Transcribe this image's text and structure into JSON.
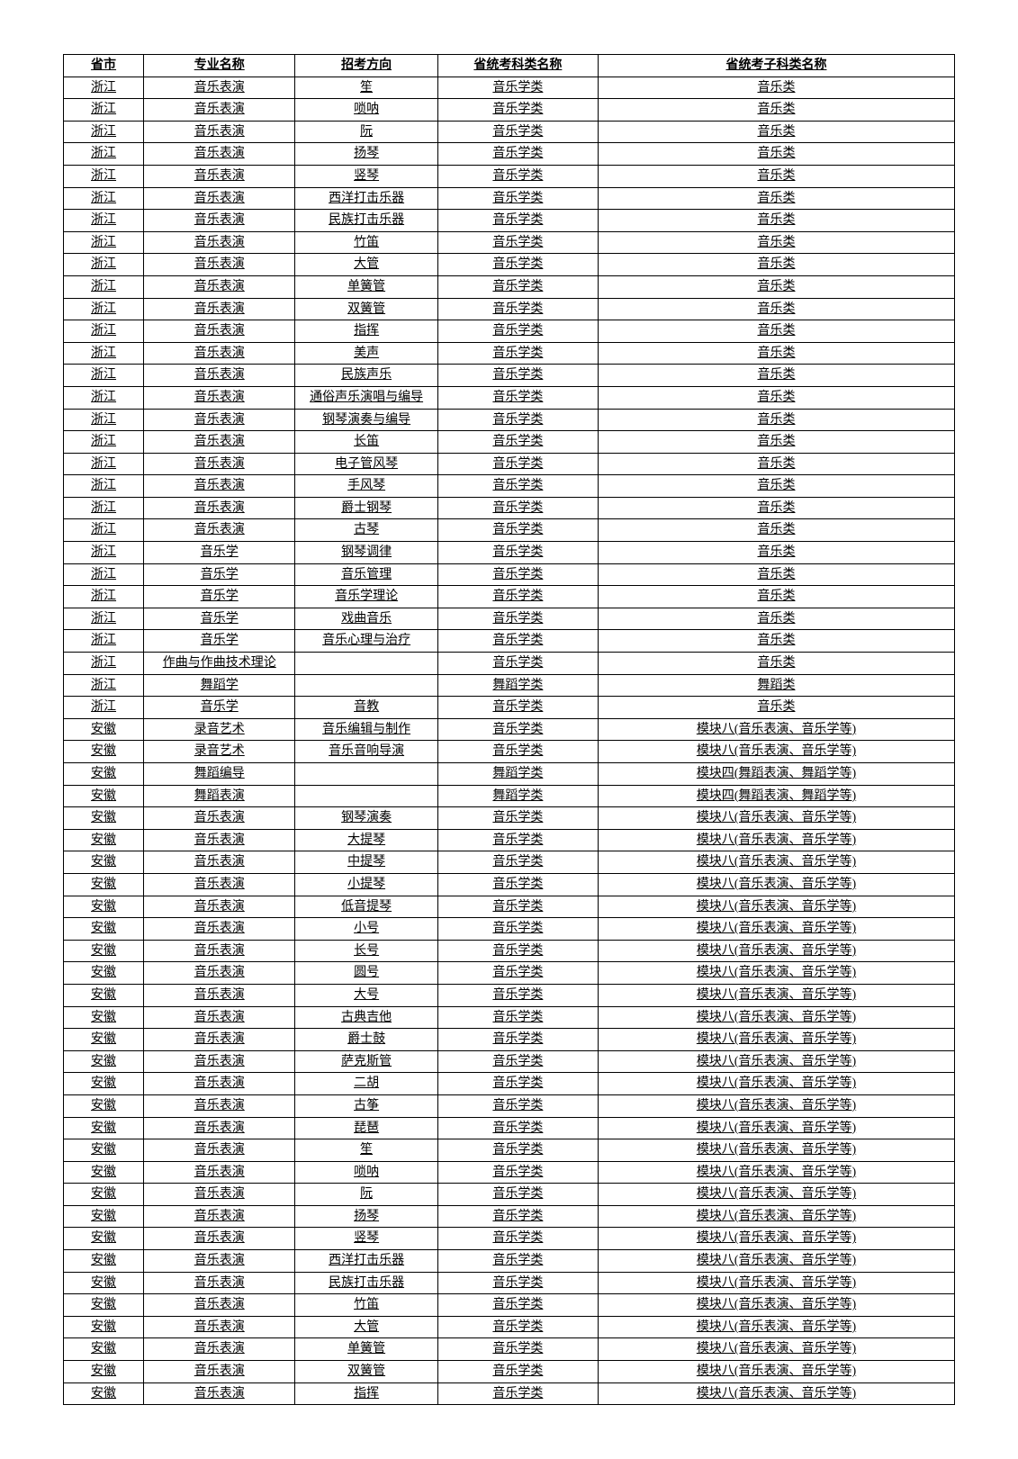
{
  "table": {
    "columns": [
      "省市",
      "专业名称",
      "招考方向",
      "省统考科类名称",
      "省统考子科类名称"
    ],
    "column_widths": [
      "9%",
      "17%",
      "16%",
      "18%",
      "40%"
    ],
    "text_color": "#000000",
    "border_color": "#000000",
    "background_color": "#ffffff",
    "font_size": 14,
    "rows": [
      [
        "浙江",
        "音乐表演",
        "笙",
        "音乐学类",
        "音乐类"
      ],
      [
        "浙江",
        "音乐表演",
        "唢呐",
        "音乐学类",
        "音乐类"
      ],
      [
        "浙江",
        "音乐表演",
        "阮",
        "音乐学类",
        "音乐类"
      ],
      [
        "浙江",
        "音乐表演",
        "扬琴",
        "音乐学类",
        "音乐类"
      ],
      [
        "浙江",
        "音乐表演",
        "竖琴",
        "音乐学类",
        "音乐类"
      ],
      [
        "浙江",
        "音乐表演",
        "西洋打击乐器",
        "音乐学类",
        "音乐类"
      ],
      [
        "浙江",
        "音乐表演",
        "民族打击乐器",
        "音乐学类",
        "音乐类"
      ],
      [
        "浙江",
        "音乐表演",
        "竹笛",
        "音乐学类",
        "音乐类"
      ],
      [
        "浙江",
        "音乐表演",
        "大管",
        "音乐学类",
        "音乐类"
      ],
      [
        "浙江",
        "音乐表演",
        "单簧管",
        "音乐学类",
        "音乐类"
      ],
      [
        "浙江",
        "音乐表演",
        "双簧管",
        "音乐学类",
        "音乐类"
      ],
      [
        "浙江",
        "音乐表演",
        "指挥",
        "音乐学类",
        "音乐类"
      ],
      [
        "浙江",
        "音乐表演",
        "美声",
        "音乐学类",
        "音乐类"
      ],
      [
        "浙江",
        "音乐表演",
        "民族声乐",
        "音乐学类",
        "音乐类"
      ],
      [
        "浙江",
        "音乐表演",
        "通俗声乐演唱与编导",
        "音乐学类",
        "音乐类"
      ],
      [
        "浙江",
        "音乐表演",
        "钢琴演奏与编导",
        "音乐学类",
        "音乐类"
      ],
      [
        "浙江",
        "音乐表演",
        "长笛",
        "音乐学类",
        "音乐类"
      ],
      [
        "浙江",
        "音乐表演",
        "电子管风琴",
        "音乐学类",
        "音乐类"
      ],
      [
        "浙江",
        "音乐表演",
        "手风琴",
        "音乐学类",
        "音乐类"
      ],
      [
        "浙江",
        "音乐表演",
        "爵士钢琴",
        "音乐学类",
        "音乐类"
      ],
      [
        "浙江",
        "音乐表演",
        "古琴",
        "音乐学类",
        "音乐类"
      ],
      [
        "浙江",
        "音乐学",
        "钢琴调律",
        "音乐学类",
        "音乐类"
      ],
      [
        "浙江",
        "音乐学",
        "音乐管理",
        "音乐学类",
        "音乐类"
      ],
      [
        "浙江",
        "音乐学",
        "音乐学理论",
        "音乐学类",
        "音乐类"
      ],
      [
        "浙江",
        "音乐学",
        "戏曲音乐",
        "音乐学类",
        "音乐类"
      ],
      [
        "浙江",
        "音乐学",
        "音乐心理与治疗",
        "音乐学类",
        "音乐类"
      ],
      [
        "浙江",
        "作曲与作曲技术理论",
        "",
        "音乐学类",
        "音乐类"
      ],
      [
        "浙江",
        "舞蹈学",
        "",
        "舞蹈学类",
        "舞蹈类"
      ],
      [
        "浙江",
        "音乐学",
        "音教",
        "音乐学类",
        "音乐类"
      ],
      [
        "安徽",
        "录音艺术",
        "音乐编辑与制作",
        "音乐学类",
        "模块八(音乐表演、音乐学等)"
      ],
      [
        "安徽",
        "录音艺术",
        "音乐音响导演",
        "音乐学类",
        "模块八(音乐表演、音乐学等)"
      ],
      [
        "安徽",
        "舞蹈编导",
        "",
        "舞蹈学类",
        "模块四(舞蹈表演、舞蹈学等)"
      ],
      [
        "安徽",
        "舞蹈表演",
        "",
        "舞蹈学类",
        "模块四(舞蹈表演、舞蹈学等)"
      ],
      [
        "安徽",
        "音乐表演",
        "钢琴演奏",
        "音乐学类",
        "模块八(音乐表演、音乐学等)"
      ],
      [
        "安徽",
        "音乐表演",
        "大提琴",
        "音乐学类",
        "模块八(音乐表演、音乐学等)"
      ],
      [
        "安徽",
        "音乐表演",
        "中提琴",
        "音乐学类",
        "模块八(音乐表演、音乐学等)"
      ],
      [
        "安徽",
        "音乐表演",
        "小提琴",
        "音乐学类",
        "模块八(音乐表演、音乐学等)"
      ],
      [
        "安徽",
        "音乐表演",
        "低音提琴",
        "音乐学类",
        "模块八(音乐表演、音乐学等)"
      ],
      [
        "安徽",
        "音乐表演",
        "小号",
        "音乐学类",
        "模块八(音乐表演、音乐学等)"
      ],
      [
        "安徽",
        "音乐表演",
        "长号",
        "音乐学类",
        "模块八(音乐表演、音乐学等)"
      ],
      [
        "安徽",
        "音乐表演",
        "圆号",
        "音乐学类",
        "模块八(音乐表演、音乐学等)"
      ],
      [
        "安徽",
        "音乐表演",
        "大号",
        "音乐学类",
        "模块八(音乐表演、音乐学等)"
      ],
      [
        "安徽",
        "音乐表演",
        "古典吉他",
        "音乐学类",
        "模块八(音乐表演、音乐学等)"
      ],
      [
        "安徽",
        "音乐表演",
        "爵士鼓",
        "音乐学类",
        "模块八(音乐表演、音乐学等)"
      ],
      [
        "安徽",
        "音乐表演",
        "萨克斯管",
        "音乐学类",
        "模块八(音乐表演、音乐学等)"
      ],
      [
        "安徽",
        "音乐表演",
        "二胡",
        "音乐学类",
        "模块八(音乐表演、音乐学等)"
      ],
      [
        "安徽",
        "音乐表演",
        "古筝",
        "音乐学类",
        "模块八(音乐表演、音乐学等)"
      ],
      [
        "安徽",
        "音乐表演",
        "琵琶",
        "音乐学类",
        "模块八(音乐表演、音乐学等)"
      ],
      [
        "安徽",
        "音乐表演",
        "笙",
        "音乐学类",
        "模块八(音乐表演、音乐学等)"
      ],
      [
        "安徽",
        "音乐表演",
        "唢呐",
        "音乐学类",
        "模块八(音乐表演、音乐学等)"
      ],
      [
        "安徽",
        "音乐表演",
        "阮",
        "音乐学类",
        "模块八(音乐表演、音乐学等)"
      ],
      [
        "安徽",
        "音乐表演",
        "扬琴",
        "音乐学类",
        "模块八(音乐表演、音乐学等)"
      ],
      [
        "安徽",
        "音乐表演",
        "竖琴",
        "音乐学类",
        "模块八(音乐表演、音乐学等)"
      ],
      [
        "安徽",
        "音乐表演",
        "西洋打击乐器",
        "音乐学类",
        "模块八(音乐表演、音乐学等)"
      ],
      [
        "安徽",
        "音乐表演",
        "民族打击乐器",
        "音乐学类",
        "模块八(音乐表演、音乐学等)"
      ],
      [
        "安徽",
        "音乐表演",
        "竹笛",
        "音乐学类",
        "模块八(音乐表演、音乐学等)"
      ],
      [
        "安徽",
        "音乐表演",
        "大管",
        "音乐学类",
        "模块八(音乐表演、音乐学等)"
      ],
      [
        "安徽",
        "音乐表演",
        "单簧管",
        "音乐学类",
        "模块八(音乐表演、音乐学等)"
      ],
      [
        "安徽",
        "音乐表演",
        "双簧管",
        "音乐学类",
        "模块八(音乐表演、音乐学等)"
      ],
      [
        "安徽",
        "音乐表演",
        "指挥",
        "音乐学类",
        "模块八(音乐表演、音乐学等)"
      ]
    ]
  }
}
